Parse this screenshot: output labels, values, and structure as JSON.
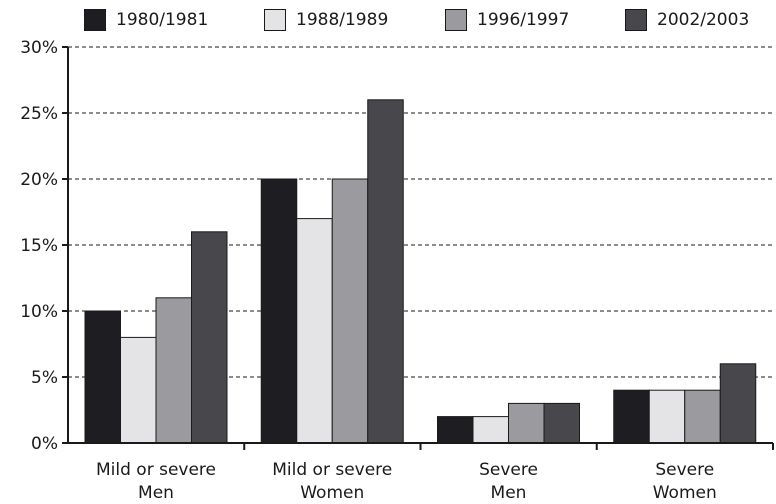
{
  "chart_data": {
    "type": "bar",
    "categories": [
      [
        "Mild or severe",
        "Men"
      ],
      [
        "Mild or severe",
        "Women"
      ],
      [
        "Severe",
        "Men"
      ],
      [
        "Severe",
        "Women"
      ]
    ],
    "series": [
      {
        "name": "1980/1981",
        "values": [
          10,
          20,
          2,
          4
        ],
        "color": "#1e1e22"
      },
      {
        "name": "1988/1989",
        "values": [
          8,
          17,
          2,
          4
        ],
        "color": "#e4e4e6"
      },
      {
        "name": "1996/1997",
        "values": [
          11,
          20,
          3,
          4
        ],
        "color": "#9b9b9f"
      },
      {
        "name": "2002/2003",
        "values": [
          16,
          26,
          3,
          6
        ],
        "color": "#48474b"
      }
    ],
    "yticks": [
      "0%",
      "5%",
      "10%",
      "15%",
      "20%",
      "25%",
      "30%"
    ],
    "ylim": [
      0,
      30
    ],
    "grid": "dashed-horizontal",
    "legend_position": "top"
  }
}
